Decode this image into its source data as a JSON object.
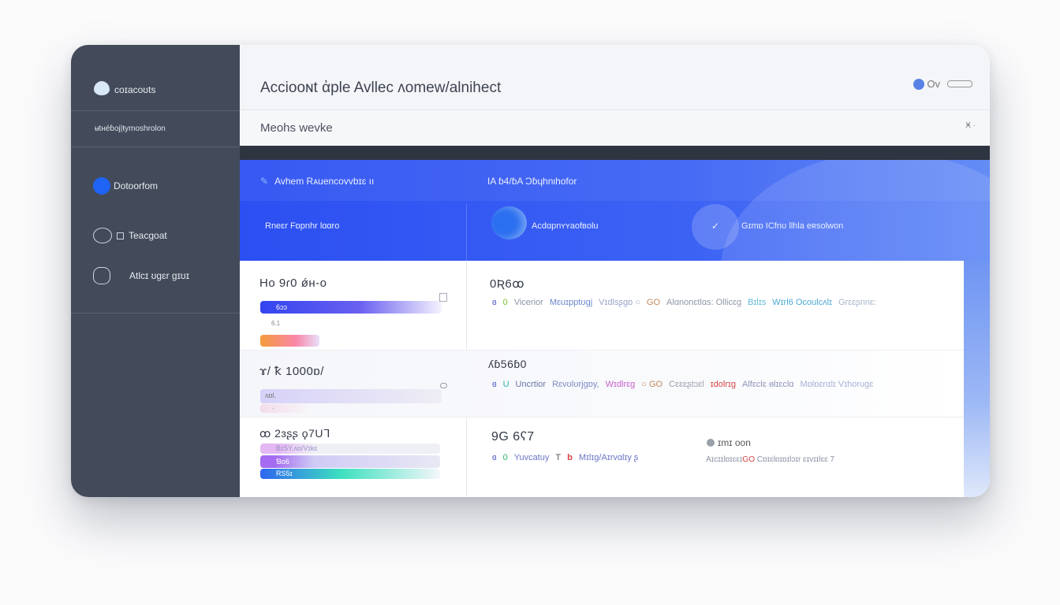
{
  "sidebar": {
    "brand": "coɪacoʊts",
    "subtitle": "ʉtнéɓoj|ŧymoshrolon",
    "items": [
      {
        "label": "Dotoorfom",
        "active": true
      },
      {
        "label": "Teacgoat"
      },
      {
        "label": "Atlcɪ ʊɡɛr ɡɪʊɪ"
      }
    ]
  },
  "header": {
    "title": "Acciooɴt ἀple Avllec ʌomew/alnihect",
    "user_label": "Ov"
  },
  "subheader": {
    "title": "Meohs wevke",
    "control": "Ӿ ·"
  },
  "banner": {
    "tab1": "Avhem Rᴀuencovvbɪɛ ıı",
    "tab2": "IA ɓ4/ɓA Ɔɓɥhnιhofor",
    "cell1": "Rneɛr Fɒpnhr lɑɑro",
    "cell2": "Acdɑpnʏʏaofвolu",
    "cell3": "Gɪmɒ ICfnʊ llhla eʀsolwon"
  },
  "rows": [
    {
      "value": "Ho 9ɾ0 ǿн-o",
      "bars": [
        {
          "label": "6ɔɔ",
          "fill": 100,
          "colors": [
            "#3344f0",
            "#a79cf5"
          ]
        },
        {
          "label": "",
          "fill": 35,
          "colors": [
            "#f39a3b",
            "#f985a8"
          ]
        }
      ],
      "small_label": "6.1",
      "metric": "0Ʀ6ꝏ",
      "tags": [
        {
          "t": "ɞ",
          "c": "#4b52c8"
        },
        {
          "t": "0",
          "c": "#7bc42e"
        },
        {
          "t": "Vicerior",
          "c": "#8a93a8"
        },
        {
          "t": "Mɛuɪpptʊɡj",
          "c": "#6a86c9"
        },
        {
          "t": "Vɪdlsʂɡɒ ○",
          "c": "#9aa4c9"
        },
        {
          "t": "GO",
          "c": "#c0875b"
        },
        {
          "t": "Alɑnonɛtlɑs: Ollicɛɡ",
          "c": "#8f97a8"
        },
        {
          "t": "Bɪlɪs",
          "c": "#5fb8d8"
        },
        {
          "t": "Wɪrl6 Ocoulcʌlɪ",
          "c": "#4aa8d6"
        },
        {
          "t": "Grɛɛʂnnɛ:",
          "c": "#a8b8cc"
        }
      ]
    },
    {
      "value": "ɤ/ ꝁ 1000ɒ/",
      "bars": [
        {
          "label": "ᴧɒl.",
          "fill": 100,
          "colors": [
            "#d6d1f8",
            "#f0f0f4"
          ]
        },
        {
          "label": "·",
          "fill": 25,
          "colors": [
            "#f3dde9",
            "#f7f3f8"
          ]
        }
      ],
      "metric": "ʎɓ56ɓ0",
      "tags": [
        {
          "t": "ɞ",
          "c": "#4b52c8"
        },
        {
          "t": "U",
          "c": "#2fb3b3"
        },
        {
          "t": "Uncrtior",
          "c": "#6a76a8"
        },
        {
          "t": "Rɛvʊlʊrjɡɒy,",
          "c": "#7e8ac4"
        },
        {
          "t": "Wɪdlrɛɡ",
          "c": "#c75fcc"
        },
        {
          "t": "○ GO",
          "c": "#c0875b"
        },
        {
          "t": "Cɛɛɛʂtɔɛl",
          "c": "#9aa0ab"
        },
        {
          "t": "ɪdolrɪɡ",
          "c": "#d94444"
        },
        {
          "t": "Alfɛclɛ ɵlɪɛclɑ",
          "c": "#8e96b8"
        },
        {
          "t": "Mɒlɒɛnɪlɪ Vɪhoruɡɛ",
          "c": "#a6b0d6"
        }
      ]
    },
    {
      "value": "ꝏ 2ɜʂʂ ϙ7Uᒣ",
      "bars": [
        {
          "label": "BɪSY.ᴧɒ/Vɪkɛ",
          "fill": 100,
          "colors": [
            "#e4b8f2",
            "#eef0f6"
          ]
        },
        {
          "label": "Ɓɒ6",
          "fill": 100,
          "colors": [
            "#a46cf0",
            "#d6d3f5"
          ]
        },
        {
          "label": "RS5ɪ",
          "fill": 100,
          "colors": [
            "#2e66f0",
            "#3ee0c0"
          ]
        }
      ],
      "metric": "9G 6ʕ7",
      "tags": [
        {
          "t": "ɞ",
          "c": "#4b52c8"
        },
        {
          "t": "0",
          "c": "#2fb36a"
        },
        {
          "t": "Yuvcatuy",
          "c": "#6a76c8"
        },
        {
          "t": "T",
          "c": "#555"
        },
        {
          "t": "b",
          "c": "#d94444"
        },
        {
          "t": "Mɪlɪɡ/Aɪrvɑlɪy ʂ",
          "c": "#6a76c8"
        }
      ],
      "status": "ɪmɪ oon",
      "status_note_a": "Aɪcɪɪlɒɪɛɛɪ",
      "status_note_b": "GO",
      "status_note_c": "Cɒɪɛlɒɪɒɪlɔɪr ɛɪvɪɪlɛɛ 7"
    }
  ],
  "colors": {
    "sidebar": "#434b5a",
    "accent": "#2c4ff2"
  }
}
